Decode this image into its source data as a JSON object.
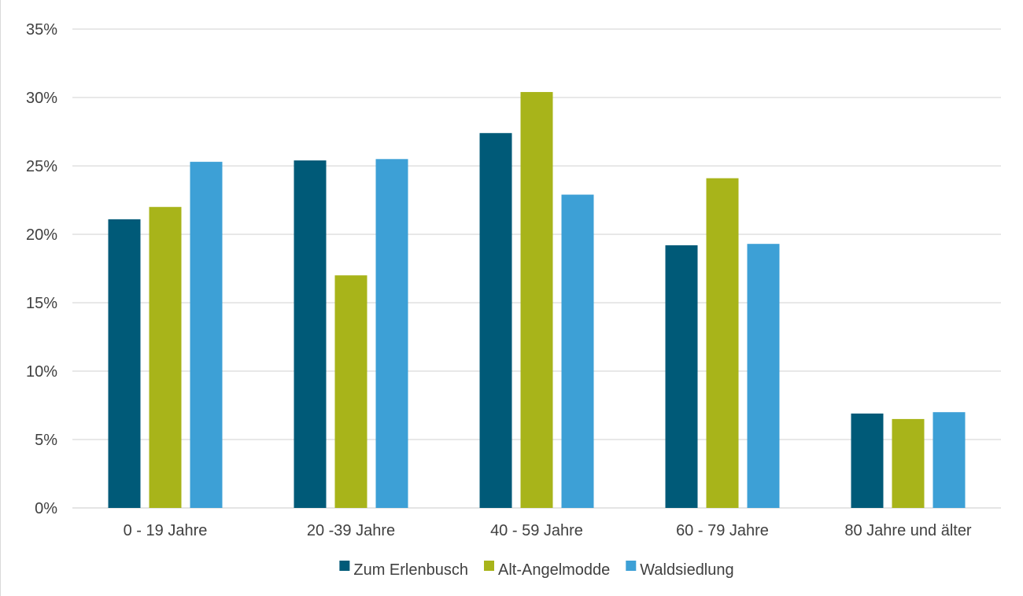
{
  "chart_data": {
    "type": "bar",
    "categories": [
      "0 - 19 Jahre",
      "20 -39 Jahre",
      "40 - 59 Jahre",
      "60 - 79 Jahre",
      "80 Jahre und älter"
    ],
    "series": [
      {
        "name": "Zum Erlenbusch",
        "color": "#005A78",
        "values": [
          21.1,
          25.4,
          27.4,
          19.2,
          6.9
        ]
      },
      {
        "name": "Alt-Angelmodde",
        "color": "#A8B41A",
        "values": [
          22.0,
          17.0,
          30.4,
          24.1,
          6.5
        ]
      },
      {
        "name": "Waldsiedlung",
        "color": "#3DA0D6",
        "values": [
          25.3,
          25.5,
          22.9,
          19.3,
          7.0
        ]
      }
    ],
    "yticks": [
      "0%",
      "5%",
      "10%",
      "15%",
      "20%",
      "25%",
      "30%",
      "35%"
    ],
    "ylim": [
      0,
      35
    ],
    "grid": true,
    "legend_position": "bottom",
    "title": "",
    "xlabel": "",
    "ylabel": ""
  }
}
